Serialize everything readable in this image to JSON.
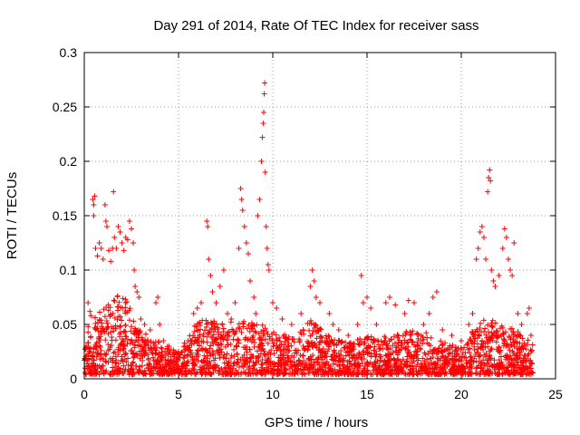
{
  "chart_data": {
    "type": "scatter",
    "title": "Day 291 of 2014, Rate Of TEC Index for receiver sass",
    "xlabel": "GPS time / hours",
    "ylabel": "ROTI / TECUs",
    "xlim": [
      0,
      25
    ],
    "ylim": [
      0,
      0.3
    ],
    "x_ticks": [
      0,
      5,
      10,
      15,
      20,
      25
    ],
    "x_tick_labels": [
      "0",
      "5",
      "10",
      "15",
      "20",
      "25"
    ],
    "y_ticks": [
      0,
      0.05,
      0.1,
      0.15,
      0.2,
      0.25,
      0.3
    ],
    "y_tick_labels": [
      "0",
      "0.05",
      "0.1",
      "0.15",
      "0.2",
      "0.25",
      "0.3"
    ],
    "grid": true,
    "grid_style": "dotted",
    "marker": "plus",
    "marker_color": "#ff0000",
    "series": [
      {
        "points": [
          [
            0.2,
            0.07
          ],
          [
            0.3,
            0.062
          ],
          [
            0.35,
            0.058
          ],
          [
            0.45,
            0.165
          ],
          [
            0.5,
            0.16
          ],
          [
            0.55,
            0.168
          ],
          [
            0.5,
            0.15
          ],
          [
            0.6,
            0.12
          ],
          [
            0.7,
            0.113
          ],
          [
            0.8,
            0.125
          ],
          [
            0.9,
            0.12
          ],
          [
            1.0,
            0.11
          ],
          [
            1.1,
            0.16
          ],
          [
            1.15,
            0.145
          ],
          [
            1.2,
            0.14
          ],
          [
            1.3,
            0.118
          ],
          [
            1.4,
            0.108
          ],
          [
            1.5,
            0.12
          ],
          [
            1.55,
            0.172
          ],
          [
            1.6,
            0.13
          ],
          [
            1.7,
            0.12
          ],
          [
            1.8,
            0.14
          ],
          [
            1.9,
            0.135
          ],
          [
            2.0,
            0.125
          ],
          [
            2.1,
            0.118
          ],
          [
            2.2,
            0.13
          ],
          [
            2.3,
            0.128
          ],
          [
            2.4,
            0.145
          ],
          [
            2.5,
            0.138
          ],
          [
            2.6,
            0.125
          ],
          [
            2.65,
            0.1
          ],
          [
            2.7,
            0.085
          ],
          [
            2.8,
            0.08
          ],
          [
            2.9,
            0.075
          ],
          [
            3.0,
            0.055
          ],
          [
            3.2,
            0.05
          ],
          [
            3.5,
            0.045
          ],
          [
            3.8,
            0.07
          ],
          [
            3.9,
            0.075
          ],
          [
            4.0,
            0.05
          ],
          [
            4.2,
            0.035
          ],
          [
            4.5,
            0.03
          ],
          [
            5.0,
            0.025
          ],
          [
            5.5,
            0.035
          ],
          [
            5.8,
            0.06
          ],
          [
            6.0,
            0.065
          ],
          [
            6.2,
            0.07
          ],
          [
            6.5,
            0.145
          ],
          [
            6.55,
            0.14
          ],
          [
            6.6,
            0.11
          ],
          [
            6.7,
            0.095
          ],
          [
            6.8,
            0.08
          ],
          [
            7.0,
            0.07
          ],
          [
            7.2,
            0.085
          ],
          [
            7.4,
            0.1
          ],
          [
            7.6,
            0.06
          ],
          [
            7.8,
            0.055
          ],
          [
            8.0,
            0.07
          ],
          [
            8.2,
            0.12
          ],
          [
            8.3,
            0.175
          ],
          [
            8.35,
            0.165
          ],
          [
            8.4,
            0.155
          ],
          [
            8.5,
            0.14
          ],
          [
            8.6,
            0.125
          ],
          [
            8.7,
            0.115
          ],
          [
            8.8,
            0.09
          ],
          [
            9.0,
            0.075
          ],
          [
            9.1,
            0.06
          ],
          [
            9.2,
            0.15
          ],
          [
            9.3,
            0.165
          ],
          [
            9.4,
            0.2
          ],
          [
            9.45,
            0.222
          ],
          [
            9.5,
            0.235
          ],
          [
            9.52,
            0.245
          ],
          [
            9.55,
            0.262
          ],
          [
            9.57,
            0.272
          ],
          [
            9.6,
            0.19
          ],
          [
            9.65,
            0.14
          ],
          [
            9.7,
            0.12
          ],
          [
            9.75,
            0.105
          ],
          [
            9.8,
            0.1
          ],
          [
            10.0,
            0.07
          ],
          [
            10.2,
            0.065
          ],
          [
            10.5,
            0.055
          ],
          [
            11.0,
            0.05
          ],
          [
            11.5,
            0.06
          ],
          [
            12.0,
            0.085
          ],
          [
            12.1,
            0.1
          ],
          [
            12.2,
            0.09
          ],
          [
            12.3,
            0.075
          ],
          [
            12.5,
            0.07
          ],
          [
            13.0,
            0.06
          ],
          [
            13.2,
            0.05
          ],
          [
            13.5,
            0.045
          ],
          [
            14.0,
            0.04
          ],
          [
            14.5,
            0.05
          ],
          [
            14.7,
            0.095
          ],
          [
            14.8,
            0.07
          ],
          [
            15.0,
            0.075
          ],
          [
            15.2,
            0.065
          ],
          [
            15.5,
            0.05
          ],
          [
            16.0,
            0.07
          ],
          [
            16.2,
            0.075
          ],
          [
            16.5,
            0.068
          ],
          [
            17.0,
            0.06
          ],
          [
            17.2,
            0.072
          ],
          [
            17.5,
            0.07
          ],
          [
            18.0,
            0.05
          ],
          [
            18.3,
            0.06
          ],
          [
            18.5,
            0.075
          ],
          [
            18.7,
            0.08
          ],
          [
            19.0,
            0.045
          ],
          [
            19.5,
            0.04
          ],
          [
            20.0,
            0.035
          ],
          [
            20.4,
            0.05
          ],
          [
            20.6,
            0.06
          ],
          [
            20.8,
            0.11
          ],
          [
            20.9,
            0.12
          ],
          [
            21.0,
            0.135
          ],
          [
            21.1,
            0.14
          ],
          [
            21.2,
            0.13
          ],
          [
            21.3,
            0.11
          ],
          [
            21.4,
            0.172
          ],
          [
            21.45,
            0.185
          ],
          [
            21.5,
            0.192
          ],
          [
            21.55,
            0.182
          ],
          [
            21.6,
            0.1
          ],
          [
            21.7,
            0.09
          ],
          [
            21.8,
            0.085
          ],
          [
            22.0,
            0.095
          ],
          [
            22.2,
            0.12
          ],
          [
            22.3,
            0.138
          ],
          [
            22.4,
            0.13
          ],
          [
            22.5,
            0.11
          ],
          [
            22.6,
            0.1
          ],
          [
            22.7,
            0.095
          ],
          [
            22.8,
            0.125
          ],
          [
            23.0,
            0.06
          ],
          [
            23.2,
            0.05
          ],
          [
            23.5,
            0.06
          ],
          [
            23.6,
            0.065
          ],
          [
            23.7,
            0.04
          ]
        ]
      }
    ]
  }
}
